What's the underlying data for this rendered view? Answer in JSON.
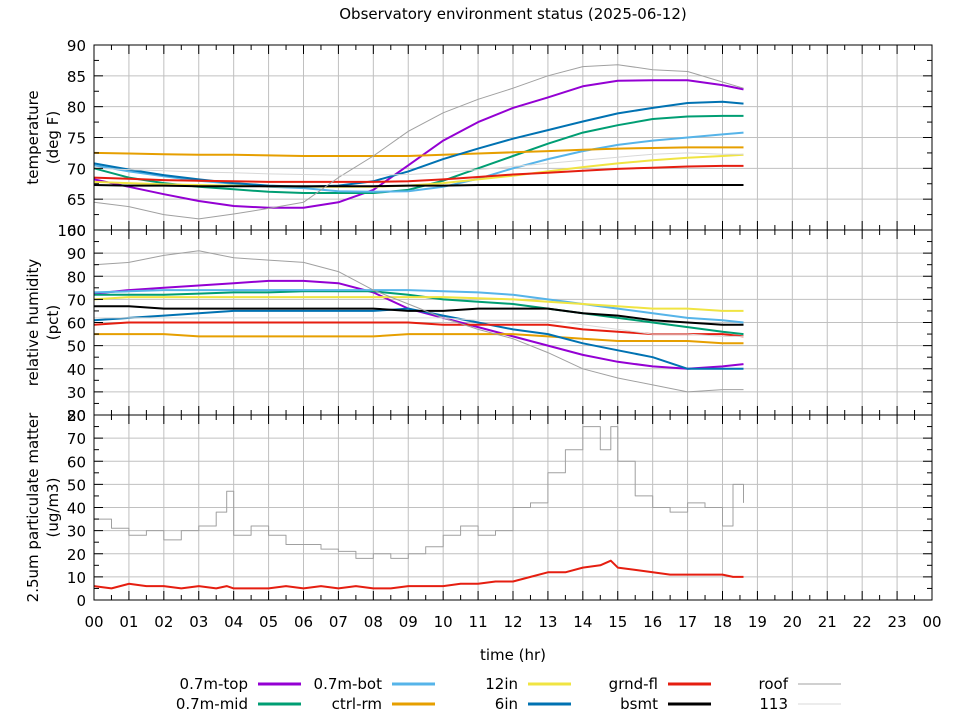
{
  "chart_data": {
    "type": "line",
    "title": "Observatory environment status (2025-06-12)",
    "xlabel": "time (hr)",
    "x_ticks": [
      "00",
      "01",
      "02",
      "03",
      "04",
      "05",
      "06",
      "07",
      "08",
      "09",
      "10",
      "11",
      "12",
      "13",
      "14",
      "15",
      "16",
      "17",
      "18",
      "19",
      "20",
      "21",
      "22",
      "23",
      "00"
    ],
    "xlim": [
      0,
      24
    ],
    "grid": true,
    "legend_placement": "bottom",
    "legend": [
      {
        "name": "0.7m-top",
        "color": "#9400d3"
      },
      {
        "name": "0.7m-mid",
        "color": "#009e73"
      },
      {
        "name": "0.7m-bot",
        "color": "#56b4e9"
      },
      {
        "name": "ctrl-rm",
        "color": "#e69f00"
      },
      {
        "name": "12in",
        "color": "#f0e442"
      },
      {
        "name": "6in",
        "color": "#0072b2"
      },
      {
        "name": "grnd-fl",
        "color": "#e51e10"
      },
      {
        "name": "bsmt",
        "color": "#000000"
      },
      {
        "name": "roof",
        "color": "#a0a0a0"
      },
      {
        "name": "113",
        "color": "#d8d8d8"
      }
    ],
    "panels": [
      {
        "id": "temperature",
        "ylabel": [
          "temperature",
          "(deg F)"
        ],
        "ylim": [
          60,
          90
        ],
        "y_ticks": [
          "60",
          "65",
          "70",
          "75",
          "80",
          "85",
          "90"
        ],
        "y_minor_step": 2.5,
        "x": [
          0,
          1,
          2,
          3,
          4,
          5,
          6,
          7,
          8,
          9,
          10,
          11,
          12,
          13,
          14,
          15,
          16,
          17,
          18,
          18.6
        ],
        "series": [
          {
            "name": "0.7m-top",
            "values": [
              68.2,
              67.0,
              65.8,
              64.7,
              63.9,
              63.6,
              63.6,
              64.5,
              66.5,
              70.5,
              74.5,
              77.5,
              79.8,
              81.5,
              83.3,
              84.2,
              84.3,
              84.3,
              83.5,
              82.8
            ]
          },
          {
            "name": "0.7m-mid",
            "values": [
              70.0,
              68.5,
              67.6,
              67.0,
              66.6,
              66.2,
              66.0,
              66.0,
              66.0,
              66.5,
              68.0,
              70.0,
              72.0,
              74.0,
              75.8,
              77.0,
              78.0,
              78.4,
              78.5,
              78.5
            ]
          },
          {
            "name": "0.7m-bot",
            "values": [
              70.5,
              69.5,
              68.7,
              68.0,
              67.5,
              67.0,
              66.8,
              66.3,
              66.2,
              66.3,
              67.0,
              68.3,
              70.0,
              71.5,
              72.8,
              73.8,
              74.5,
              75.0,
              75.5,
              75.8
            ]
          },
          {
            "name": "ctrl-rm",
            "values": [
              72.5,
              72.4,
              72.3,
              72.2,
              72.2,
              72.1,
              72.0,
              72.0,
              72.0,
              72.0,
              72.2,
              72.4,
              72.6,
              72.8,
              73.0,
              73.2,
              73.3,
              73.4,
              73.4,
              73.4
            ]
          },
          {
            "name": "12in",
            "values": [
              67.8,
              67.6,
              67.4,
              67.3,
              67.2,
              67.1,
              67.0,
              67.0,
              67.0,
              67.2,
              67.6,
              68.2,
              68.8,
              69.5,
              70.2,
              70.8,
              71.3,
              71.7,
              72.0,
              72.2
            ]
          },
          {
            "name": "6in",
            "values": [
              70.8,
              69.8,
              68.9,
              68.2,
              67.6,
              67.2,
              67.0,
              67.2,
              67.9,
              69.5,
              71.5,
              73.2,
              74.8,
              76.2,
              77.6,
              78.9,
              79.8,
              80.6,
              80.8,
              80.5
            ]
          },
          {
            "name": "grnd-fl",
            "values": [
              68.5,
              68.3,
              68.1,
              68.0,
              67.9,
              67.8,
              67.8,
              67.8,
              67.8,
              67.9,
              68.2,
              68.6,
              69.0,
              69.3,
              69.6,
              69.9,
              70.1,
              70.3,
              70.4,
              70.4
            ]
          },
          {
            "name": "bsmt",
            "values": [
              67.3,
              67.2,
              67.2,
              67.1,
              67.1,
              67.1,
              67.1,
              67.1,
              67.1,
              67.2,
              67.2,
              67.3,
              67.3,
              67.3,
              67.3,
              67.3,
              67.3,
              67.3,
              67.3,
              67.3
            ]
          },
          {
            "name": "roof",
            "values": [
              64.5,
              63.8,
              62.5,
              61.8,
              62.6,
              63.5,
              64.5,
              68.5,
              72.0,
              76.0,
              79.0,
              81.2,
              83.0,
              85.0,
              86.5,
              86.8,
              86.0,
              85.7,
              84.0,
              83.0
            ]
          },
          {
            "name": "113",
            "values": [
              70.0,
              69.8,
              69.6,
              69.4,
              69.3,
              69.1,
              69.0,
              68.9,
              68.9,
              69.0,
              69.3,
              69.8,
              70.3,
              70.8,
              71.3,
              71.8,
              72.3,
              72.5,
              72.3,
              72.3
            ]
          }
        ]
      },
      {
        "id": "humidity",
        "ylabel": [
          "relative humidity",
          "(pct)"
        ],
        "ylim": [
          20,
          100
        ],
        "y_ticks": [
          "20",
          "30",
          "40",
          "50",
          "60",
          "70",
          "80",
          "90",
          "100"
        ],
        "y_minor_step": 5,
        "x": [
          0,
          1,
          2,
          3,
          4,
          5,
          6,
          7,
          8,
          9,
          10,
          11,
          12,
          13,
          14,
          15,
          16,
          17,
          18,
          18.6
        ],
        "series": [
          {
            "name": "0.7m-top",
            "values": [
              72.5,
              74,
              75,
              76,
              77,
              78,
              78,
              77,
              73,
              66,
              62,
              58,
              54,
              50,
              46,
              43,
              41,
              40,
              41,
              42
            ]
          },
          {
            "name": "0.7m-mid",
            "values": [
              72,
              72,
              72,
              72.5,
              73,
              73,
              73.5,
              73.5,
              73.5,
              72,
              70,
              69,
              68,
              66,
              64,
              62,
              60,
              58,
              56,
              55
            ]
          },
          {
            "name": "0.7m-bot",
            "values": [
              73,
              73.5,
              74,
              74,
              74,
              74,
              74,
              74,
              74,
              74,
              73.5,
              73,
              72,
              70,
              68,
              66,
              64,
              62,
              61,
              60
            ]
          },
          {
            "name": "ctrl-rm",
            "values": [
              55,
              55,
              55,
              54,
              54,
              54,
              54,
              54,
              54,
              55,
              55,
              55,
              55,
              54,
              53,
              52,
              52,
              52,
              51,
              51
            ]
          },
          {
            "name": "12in",
            "values": [
              70,
              71,
              71,
              71,
              71,
              71,
              71,
              71,
              71,
              71,
              71,
              70.5,
              70,
              69,
              68,
              67,
              66,
              66,
              65,
              65
            ]
          },
          {
            "name": "6in",
            "values": [
              61,
              62,
              63,
              64,
              65,
              65,
              65,
              65,
              65,
              66,
              63,
              60,
              57,
              55,
              51,
              48,
              45,
              40,
              40,
              40
            ]
          },
          {
            "name": "grnd-fl",
            "values": [
              59,
              60,
              60,
              60,
              60,
              60,
              60,
              60,
              60,
              60,
              59,
              59,
              59,
              59,
              57,
              56,
              55,
              55,
              55,
              54
            ]
          },
          {
            "name": "bsmt",
            "values": [
              67,
              67,
              66,
              66,
              66,
              66,
              66,
              66,
              66,
              65,
              65,
              66,
              66,
              66,
              64,
              63,
              61,
              60,
              59,
              59
            ]
          },
          {
            "name": "roof",
            "values": [
              85,
              86,
              89,
              91,
              88,
              87,
              86,
              82,
              74,
              68,
              62,
              57,
              53,
              47,
              40,
              36,
              33,
              30,
              31,
              31
            ]
          },
          {
            "name": "113",
            "values": [
              62,
              62,
              62,
              62,
              62,
              62,
              62,
              62,
              62,
              62,
              62,
              61,
              61,
              61,
              59,
              57,
              55,
              55,
              54,
              54
            ]
          }
        ]
      },
      {
        "id": "pm25",
        "ylabel": [
          "2.5um particulate matter",
          "(ug/m3)"
        ],
        "ylim": [
          0,
          80
        ],
        "y_ticks": [
          "0",
          "10",
          "20",
          "30",
          "40",
          "50",
          "60",
          "70",
          "80"
        ],
        "y_minor_step": 5,
        "x": [
          0,
          0.5,
          1,
          1.5,
          2,
          2.5,
          3,
          3.5,
          3.8,
          4,
          4.5,
          5,
          5.5,
          6,
          6.5,
          7,
          7.5,
          8,
          8.5,
          9,
          9.5,
          10,
          10.5,
          11,
          11.5,
          12,
          12.5,
          13,
          13.5,
          14,
          14.5,
          14.8,
          15,
          15.5,
          16,
          16.5,
          17,
          17.5,
          18,
          18.3,
          18.6
        ],
        "series": [
          {
            "name": "roof",
            "values": [
              35,
              31,
              28,
              30,
              26,
              30,
              32,
              38,
              47,
              28,
              32,
              28,
              24,
              24,
              22,
              21,
              18,
              20,
              18,
              20,
              23,
              28,
              32,
              28,
              30,
              40,
              42,
              55,
              65,
              75,
              65,
              75,
              60,
              45,
              40,
              38,
              42,
              40,
              32,
              50,
              42
            ]
          },
          {
            "name": "grnd-fl",
            "values": [
              6,
              5,
              7,
              6,
              6,
              5,
              6,
              5,
              6,
              5,
              5,
              5,
              6,
              5,
              6,
              5,
              6,
              5,
              5,
              6,
              6,
              6,
              7,
              7,
              8,
              8,
              10,
              12,
              12,
              14,
              15,
              17,
              14,
              13,
              12,
              11,
              11,
              11,
              11,
              10,
              10
            ]
          }
        ]
      }
    ]
  }
}
